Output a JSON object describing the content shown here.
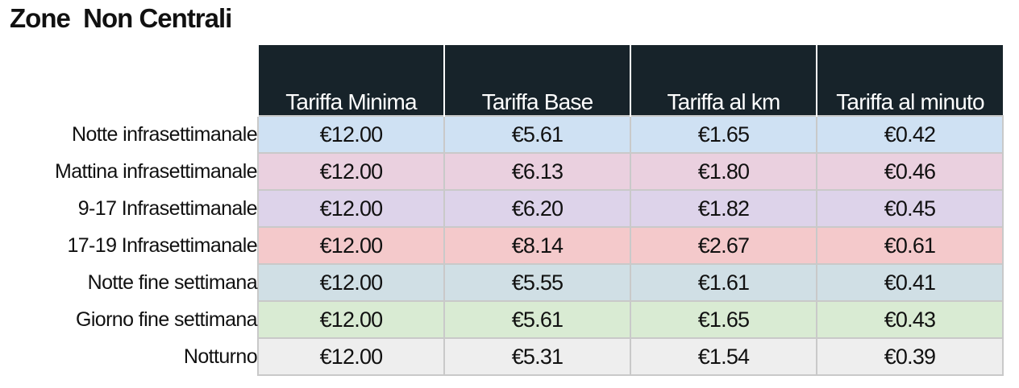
{
  "title": "Zone  Non Centrali",
  "table": {
    "headers": [
      "Tariffa Minima",
      "Tariffa Base",
      "Tariffa al km",
      "Tariffa al minuto"
    ],
    "rows": [
      {
        "label": "Notte infrasettimanale",
        "color": "#cfe1f3",
        "values": [
          "€12.00",
          "€5.61",
          "€1.65",
          "€0.42"
        ]
      },
      {
        "label": "Mattina infrasettimanale",
        "color": "#ead0df",
        "values": [
          "€12.00",
          "€6.13",
          "€1.80",
          "€0.46"
        ]
      },
      {
        "label": "9-17 Infrasettimanale",
        "color": "#ddd3ea",
        "values": [
          "€12.00",
          "€6.20",
          "€1.82",
          "€0.45"
        ]
      },
      {
        "label": "17-19 Infrasettimanale",
        "color": "#f4c9cb",
        "values": [
          "€12.00",
          "€8.14",
          "€2.67",
          "€0.61"
        ]
      },
      {
        "label": "Notte fine settimana",
        "color": "#d0dfe5",
        "values": [
          "€12.00",
          "€5.55",
          "€1.61",
          "€0.41"
        ]
      },
      {
        "label": "Giorno fine settimana",
        "color": "#d9ebd3",
        "values": [
          "€12.00",
          "€5.61",
          "€1.65",
          "€0.43"
        ]
      },
      {
        "label": "Notturno",
        "color": "#eeeeee",
        "values": [
          "€12.00",
          "€5.31",
          "€1.54",
          "€0.39"
        ]
      }
    ]
  }
}
